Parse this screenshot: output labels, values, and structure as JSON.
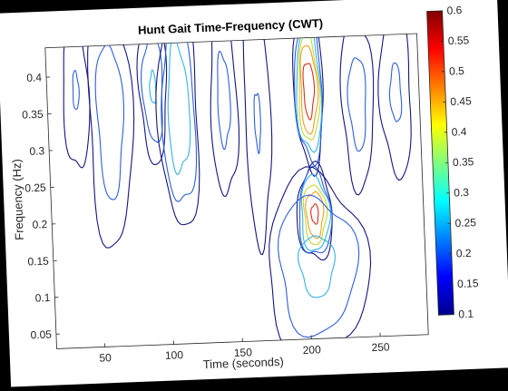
{
  "chart_data": {
    "type": "contour",
    "title": "Hunt Gait Time-Frequency (CWT)",
    "xlabel": "Time (seconds)",
    "ylabel": "Frequency (Hz)",
    "xlim": [
      15,
      285
    ],
    "ylim": [
      0.03,
      0.44
    ],
    "xticks": [
      50,
      100,
      150,
      200,
      250
    ],
    "yticks": [
      0.05,
      0.1,
      0.15,
      0.2,
      0.25,
      0.3,
      0.35,
      0.4
    ],
    "colorbar": {
      "range": [
        0.1,
        0.6
      ],
      "ticks": [
        0.1,
        0.15,
        0.2,
        0.25,
        0.3,
        0.35,
        0.4,
        0.45,
        0.5,
        0.55,
        0.6
      ],
      "colormap": "jet",
      "placement": "right"
    },
    "contour_levels": [
      {
        "value": 0.13,
        "color": "#14167f"
      },
      {
        "value": 0.2,
        "color": "#2f5ed9"
      },
      {
        "value": 0.28,
        "color": "#33b4e8"
      },
      {
        "value": 0.38,
        "color": "#c8d832"
      },
      {
        "value": 0.45,
        "color": "#f0a020"
      },
      {
        "value": 0.54,
        "color": "#d83018"
      }
    ],
    "regions": [
      {
        "t": 36,
        "f": 0.38,
        "peak": 0.2,
        "dt": 5,
        "df": 0.06
      },
      {
        "t": 60,
        "f": 0.34,
        "peak": 0.24,
        "dt": 8,
        "df": 0.09
      },
      {
        "t": 92,
        "f": 0.38,
        "peak": 0.28,
        "dt": 5,
        "df": 0.05
      },
      {
        "t": 110,
        "f": 0.35,
        "peak": 0.34,
        "dt": 7,
        "df": 0.08
      },
      {
        "t": 143,
        "f": 0.36,
        "peak": 0.22,
        "dt": 5,
        "df": 0.07
      },
      {
        "t": 167,
        "f": 0.33,
        "peak": 0.2,
        "dt": 5,
        "df": 0.09
      },
      {
        "t": 205,
        "f": 0.37,
        "peak": 0.6,
        "dt": 5,
        "df": 0.05
      },
      {
        "t": 206,
        "f": 0.2,
        "peak": 0.55,
        "dt": 6,
        "df": 0.03
      },
      {
        "t": 206,
        "f": 0.13,
        "peak": 0.3,
        "dt": 18,
        "df": 0.06
      },
      {
        "t": 240,
        "f": 0.35,
        "peak": 0.23,
        "dt": 6,
        "df": 0.06
      },
      {
        "t": 268,
        "f": 0.36,
        "peak": 0.21,
        "dt": 6,
        "df": 0.06
      }
    ]
  }
}
